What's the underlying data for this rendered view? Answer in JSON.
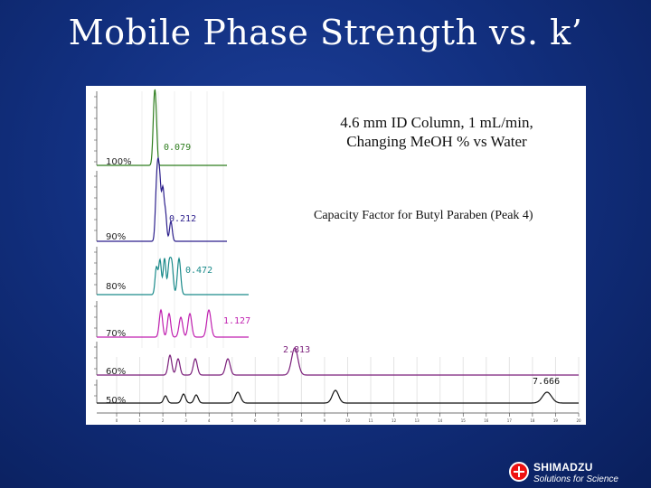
{
  "slide": {
    "title": "Mobile Phase Strength vs. k",
    "title_prime": "’"
  },
  "chart": {
    "column_note_line1": "4.6 mm ID Column, 1 mL/min,",
    "column_note_line2": "Changing MeOH % vs Water",
    "capacity_note": "Capacity Factor for Butyl Paraben (Peak 4)"
  },
  "chart_data": {
    "type": "line",
    "title": "",
    "xlabel": "",
    "ylabel": "",
    "x_ticks": [
      "0",
      "1",
      "2",
      "3",
      "4",
      "5",
      "6",
      "7",
      "8",
      "9",
      "10",
      "11",
      "12",
      "13",
      "14",
      "15",
      "16",
      "17",
      "18",
      "19",
      "20"
    ],
    "series": [
      {
        "name": "100%",
        "k": "0.079",
        "color": "#2e7d1e"
      },
      {
        "name": "90%",
        "k": "0.212",
        "color": "#2c1f8c"
      },
      {
        "name": "80%",
        "k": "0.472",
        "color": "#1a8a8a"
      },
      {
        "name": "70%",
        "k": "1.127",
        "color": "#c020b0"
      },
      {
        "name": "60%",
        "k": "2.813",
        "color": "#7a1e7a"
      },
      {
        "name": "50%",
        "k": "7.666",
        "color": "#111111"
      }
    ]
  },
  "branding": {
    "name": "SHIMADZU",
    "tagline": "Solutions for Science"
  }
}
